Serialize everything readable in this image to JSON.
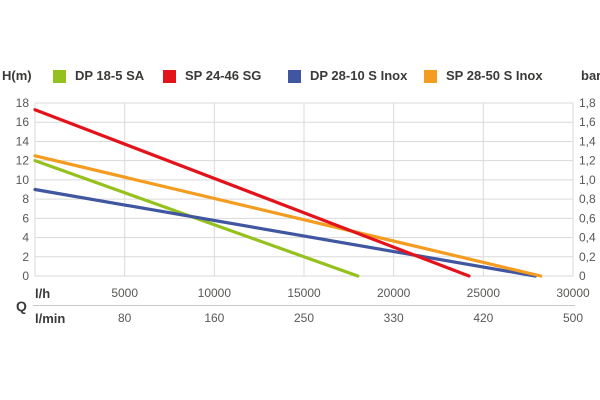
{
  "chart_data": {
    "type": "line",
    "description": "Pump head (H) versus flow rate (Q) performance curves for four submersible pumps",
    "legend_position": "top",
    "grid": true,
    "x_axis": {
      "label": "Q",
      "primary_unit": "l/h",
      "secondary_unit": "l/min",
      "range_lh": [
        0,
        30000
      ],
      "ticks_lh": [
        5000,
        10000,
        15000,
        20000,
        25000,
        30000
      ],
      "ticks_lmin": [
        "80",
        "160",
        "250",
        "330",
        "420",
        "500"
      ]
    },
    "y_axis_left": {
      "label": "H(m)",
      "range": [
        0,
        18
      ],
      "ticks": [
        0,
        2,
        4,
        6,
        8,
        10,
        12,
        14,
        16,
        18
      ]
    },
    "y_axis_right": {
      "label": "bar",
      "range": [
        0,
        1.8
      ],
      "ticks": [
        "0",
        "0,2",
        "0,4",
        "0,6",
        "0,8",
        "1,0",
        "1,2",
        "1,4",
        "1,6",
        "1,8"
      ]
    },
    "series": [
      {
        "name": "DP 18-5 SA",
        "color": "#95C11F",
        "points_lh_H": [
          [
            0,
            12.0
          ],
          [
            18000,
            0
          ]
        ]
      },
      {
        "name": "SP 24-46 SG",
        "color": "#E3131B",
        "points_lh_H": [
          [
            0,
            17.3
          ],
          [
            24200,
            0
          ]
        ]
      },
      {
        "name": "DP 28-10 S Inox",
        "color": "#4156A0",
        "points_lh_H": [
          [
            0,
            9.0
          ],
          [
            27900,
            0
          ]
        ]
      },
      {
        "name": "SP 28-50 S Inox",
        "color": "#F39C1F",
        "points_lh_H": [
          [
            0,
            12.5
          ],
          [
            28200,
            0
          ]
        ]
      }
    ],
    "colors": {
      "grid": "#DADADA",
      "tick_text": "#585856",
      "label_text": "#3A3A39",
      "background": "#FFFFFF"
    }
  }
}
